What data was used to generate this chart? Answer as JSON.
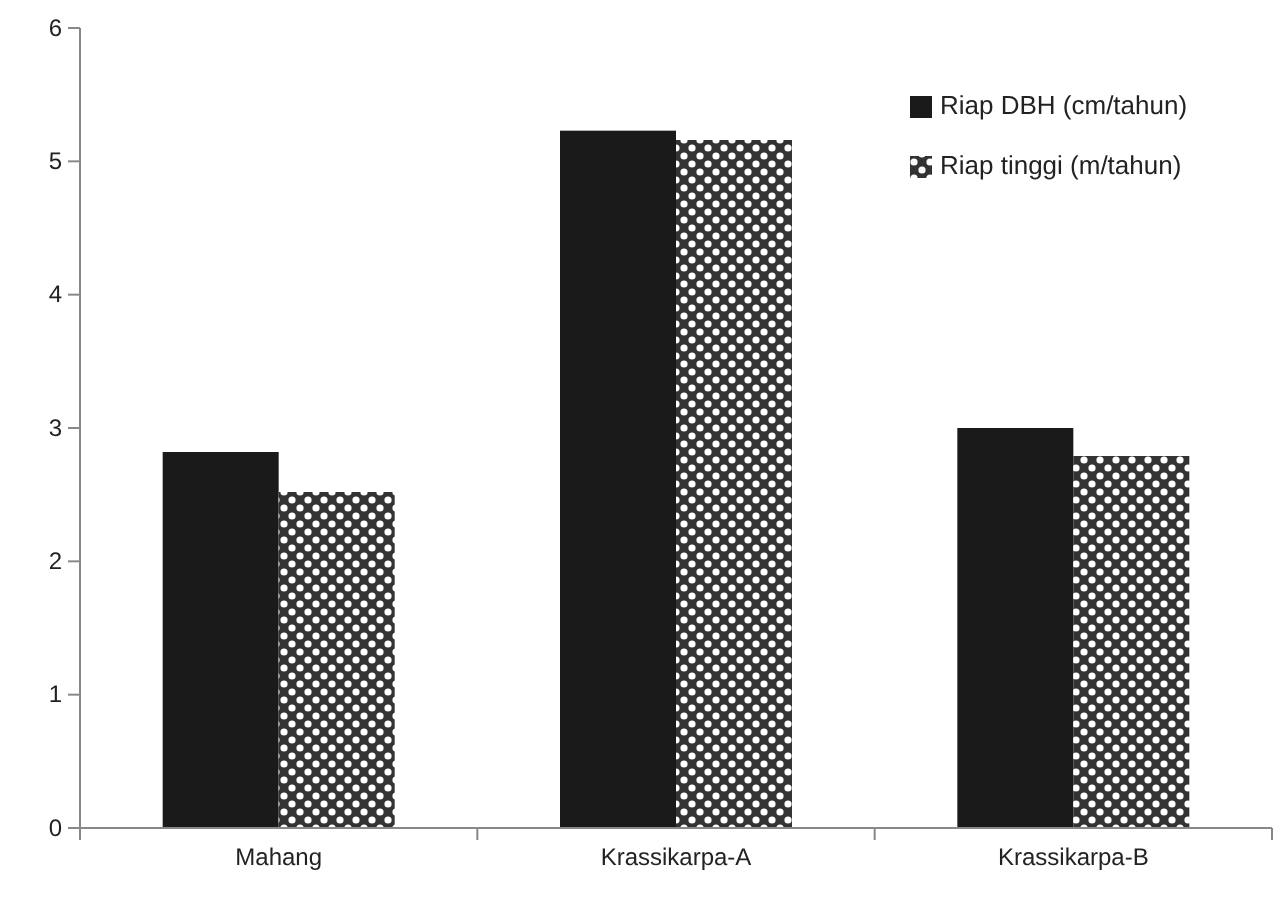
{
  "chart_data": {
    "type": "bar",
    "categories": [
      "Mahang",
      "Krassikarpa-A",
      "Krassikarpa-B"
    ],
    "series": [
      {
        "name": "Riap DBH (cm/tahun)",
        "color": "#1a1a1a",
        "values": [
          2.82,
          5.23,
          3.0
        ]
      },
      {
        "name": "Riap tinggi (m/tahun)",
        "color": "#333333",
        "values": [
          2.52,
          5.16,
          2.79
        ]
      }
    ],
    "ylim": [
      0,
      6
    ],
    "yticks": [
      0,
      1,
      2,
      3,
      4,
      5,
      6
    ],
    "grid": false,
    "legend": "top right"
  }
}
